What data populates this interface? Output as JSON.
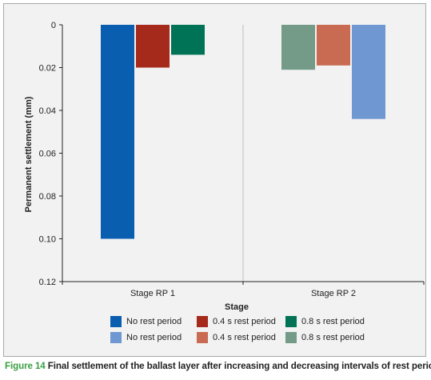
{
  "caption": {
    "label": "Figure 14",
    "text": "Final settlement of the ballast layer after increasing and decreasing intervals of rest periods"
  },
  "colors": {
    "figure_label": "#3a9e43",
    "grid": "#bfbfbf",
    "background": "#f2f2f2"
  },
  "chart_data": {
    "type": "bar",
    "orientation": "vertical",
    "y_axis_inverted": true,
    "xlabel": "Stage",
    "ylabel": "Permanent settlement (mm)",
    "ylim": [
      0,
      0.12
    ],
    "yticks": [
      0,
      0.02,
      0.04,
      0.06,
      0.08,
      0.1,
      0.12
    ],
    "ytick_labels": [
      "0",
      "0.02",
      "0.04",
      "0.06",
      "0.08",
      "0.10",
      "0.12"
    ],
    "grid": false,
    "legend_position": "bottom",
    "categories": [
      "Stage RP 1",
      "Stage RP 2"
    ],
    "series": [
      {
        "name": "No rest period",
        "color": "#0a5eb0",
        "values": [
          0.1,
          null
        ]
      },
      {
        "name": "0.4 s rest period",
        "color": "#a52a1c",
        "values": [
          0.02,
          null
        ]
      },
      {
        "name": "0.8 s rest period",
        "color": "#007356",
        "values": [
          0.014,
          null
        ]
      },
      {
        "name": "No rest period",
        "color": "#6f97d2",
        "values": [
          null,
          0.044
        ]
      },
      {
        "name": "0.4 s rest period",
        "color": "#c96a52",
        "values": [
          null,
          0.019
        ]
      },
      {
        "name": "0.8 s rest period",
        "color": "#749a88",
        "values": [
          null,
          0.021
        ]
      }
    ],
    "bar_order_within_category": [
      [
        0,
        1,
        2
      ],
      [
        5,
        4,
        3
      ]
    ]
  }
}
